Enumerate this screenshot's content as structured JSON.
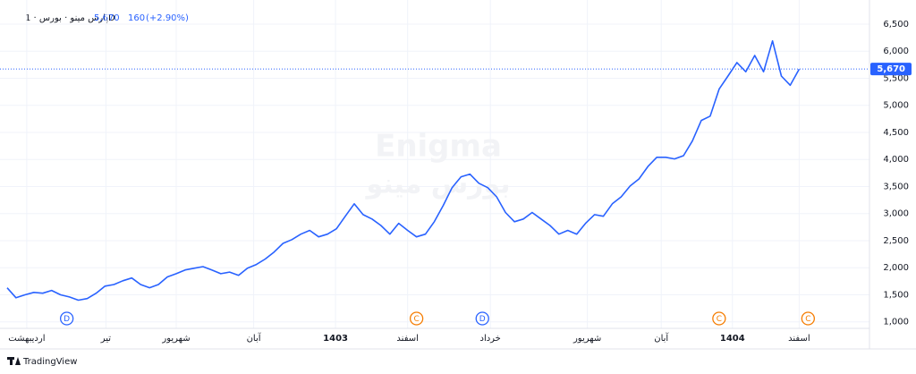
{
  "chart_data": {
    "type": "line",
    "title": "پارس مینو · بورس · 1D",
    "last": {
      "value": 5670,
      "label": "5,670"
    },
    "change": 160,
    "change_pct": {
      "value": 2.9,
      "label": "(+2.90%)"
    },
    "watermark": [
      "Enigma",
      "بورس مینو"
    ],
    "footer": "TradingView",
    "series": [
      {
        "name": "پارس مینو",
        "color": "#2962ff",
        "values": [
          1628,
          1446,
          1500,
          1545,
          1530,
          1580,
          1500,
          1460,
          1400,
          1430,
          1530,
          1660,
          1690,
          1760,
          1810,
          1690,
          1630,
          1690,
          1830,
          1890,
          1960,
          1990,
          2020,
          1960,
          1890,
          1920,
          1860,
          1990,
          2060,
          2160,
          2290,
          2450,
          2520,
          2620,
          2690,
          2570,
          2620,
          2720,
          2950,
          3180,
          2980,
          2900,
          2780,
          2620,
          2820,
          2690,
          2570,
          2620,
          2850,
          3150,
          3480,
          3680,
          3730,
          3560,
          3480,
          3310,
          3020,
          2850,
          2900,
          3020,
          2900,
          2780,
          2620,
          2690,
          2620,
          2820,
          2980,
          2950,
          3180,
          3310,
          3510,
          3640,
          3870,
          4040,
          4040,
          4010,
          4070,
          4340,
          4720,
          4800,
          5300,
          5540,
          5790,
          5620,
          5920,
          5620,
          6190,
          5540,
          5370,
          5670
        ]
      }
    ],
    "xlim": [
      0,
      96.7
    ],
    "ylim": [
      880,
      6780
    ],
    "yticks": [
      {
        "value": 1000,
        "label": "1,000"
      },
      {
        "value": 1500,
        "label": "1,500"
      },
      {
        "value": 2000,
        "label": "2,000"
      },
      {
        "value": 2500,
        "label": "2,500"
      },
      {
        "value": 3000,
        "label": "3,000"
      },
      {
        "value": 3500,
        "label": "3,500"
      },
      {
        "value": 4000,
        "label": "4,000"
      },
      {
        "value": 4500,
        "label": "4,500"
      },
      {
        "value": 5000,
        "label": "5,000"
      },
      {
        "value": 5500,
        "label": "5,500"
      },
      {
        "value": 6000,
        "label": "6,000"
      },
      {
        "value": 6500,
        "label": "6,500"
      }
    ],
    "xticks": [
      {
        "value": 2.2,
        "label": "اردیبهشت"
      },
      {
        "value": 11.1,
        "label": "تیر"
      },
      {
        "value": 19,
        "label": "شهریور"
      },
      {
        "value": 27.7,
        "label": "آبان"
      },
      {
        "value": 36.9,
        "label": "1403"
      },
      {
        "value": 45,
        "label": "اسفند"
      },
      {
        "value": 54.3,
        "label": "خرداد"
      },
      {
        "value": 65.2,
        "label": "شهریور"
      },
      {
        "value": 73.5,
        "label": "آبان"
      },
      {
        "value": 81.5,
        "label": "1404"
      },
      {
        "value": 89,
        "label": "اسفند"
      }
    ],
    "events": [
      {
        "label": "D",
        "x": 6.7,
        "color": "#2962ff"
      },
      {
        "label": "C",
        "x": 46,
        "color": "#f57c00"
      },
      {
        "label": "D",
        "x": 53.4,
        "color": "#2962ff"
      },
      {
        "label": "C",
        "x": 80,
        "color": "#f57c00"
      },
      {
        "label": "C",
        "x": 90,
        "color": "#f57c00"
      }
    ],
    "grid": true
  }
}
